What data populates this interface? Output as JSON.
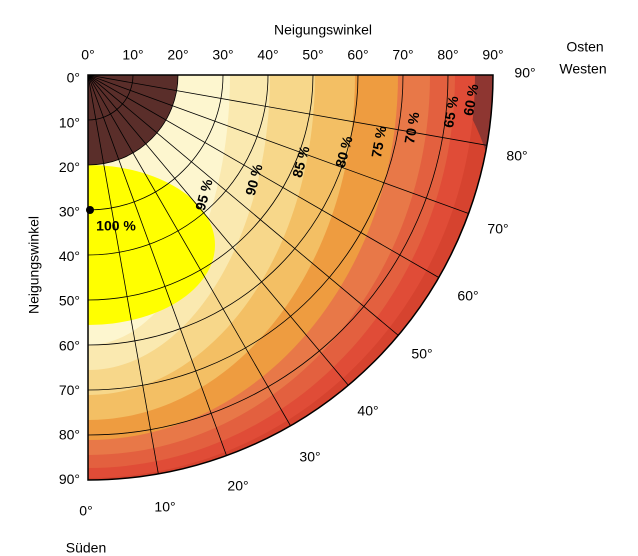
{
  "top_axis": {
    "title": "Neigungswinkel",
    "ticks": [
      "0°",
      "10°",
      "20°",
      "30°",
      "40°",
      "50°",
      "60°",
      "70°",
      "80°",
      "90°"
    ]
  },
  "left_axis": {
    "title": "Neigungswinkel",
    "ticks": [
      "0°",
      "10°",
      "20°",
      "30°",
      "40°",
      "50°",
      "60°",
      "70°",
      "80°",
      "90°"
    ]
  },
  "azimuth": {
    "ticks": [
      "0°",
      "10°",
      "20°",
      "30°",
      "40°",
      "50°",
      "60°",
      "70°",
      "80°",
      "90°"
    ],
    "east": "Osten",
    "west": "Westen",
    "south": "Süden"
  },
  "contours": [
    "100 %",
    "95 %",
    "90 %",
    "85 %",
    "80 %",
    "75 %",
    "70 %",
    "65 %",
    "60 %"
  ]
}
